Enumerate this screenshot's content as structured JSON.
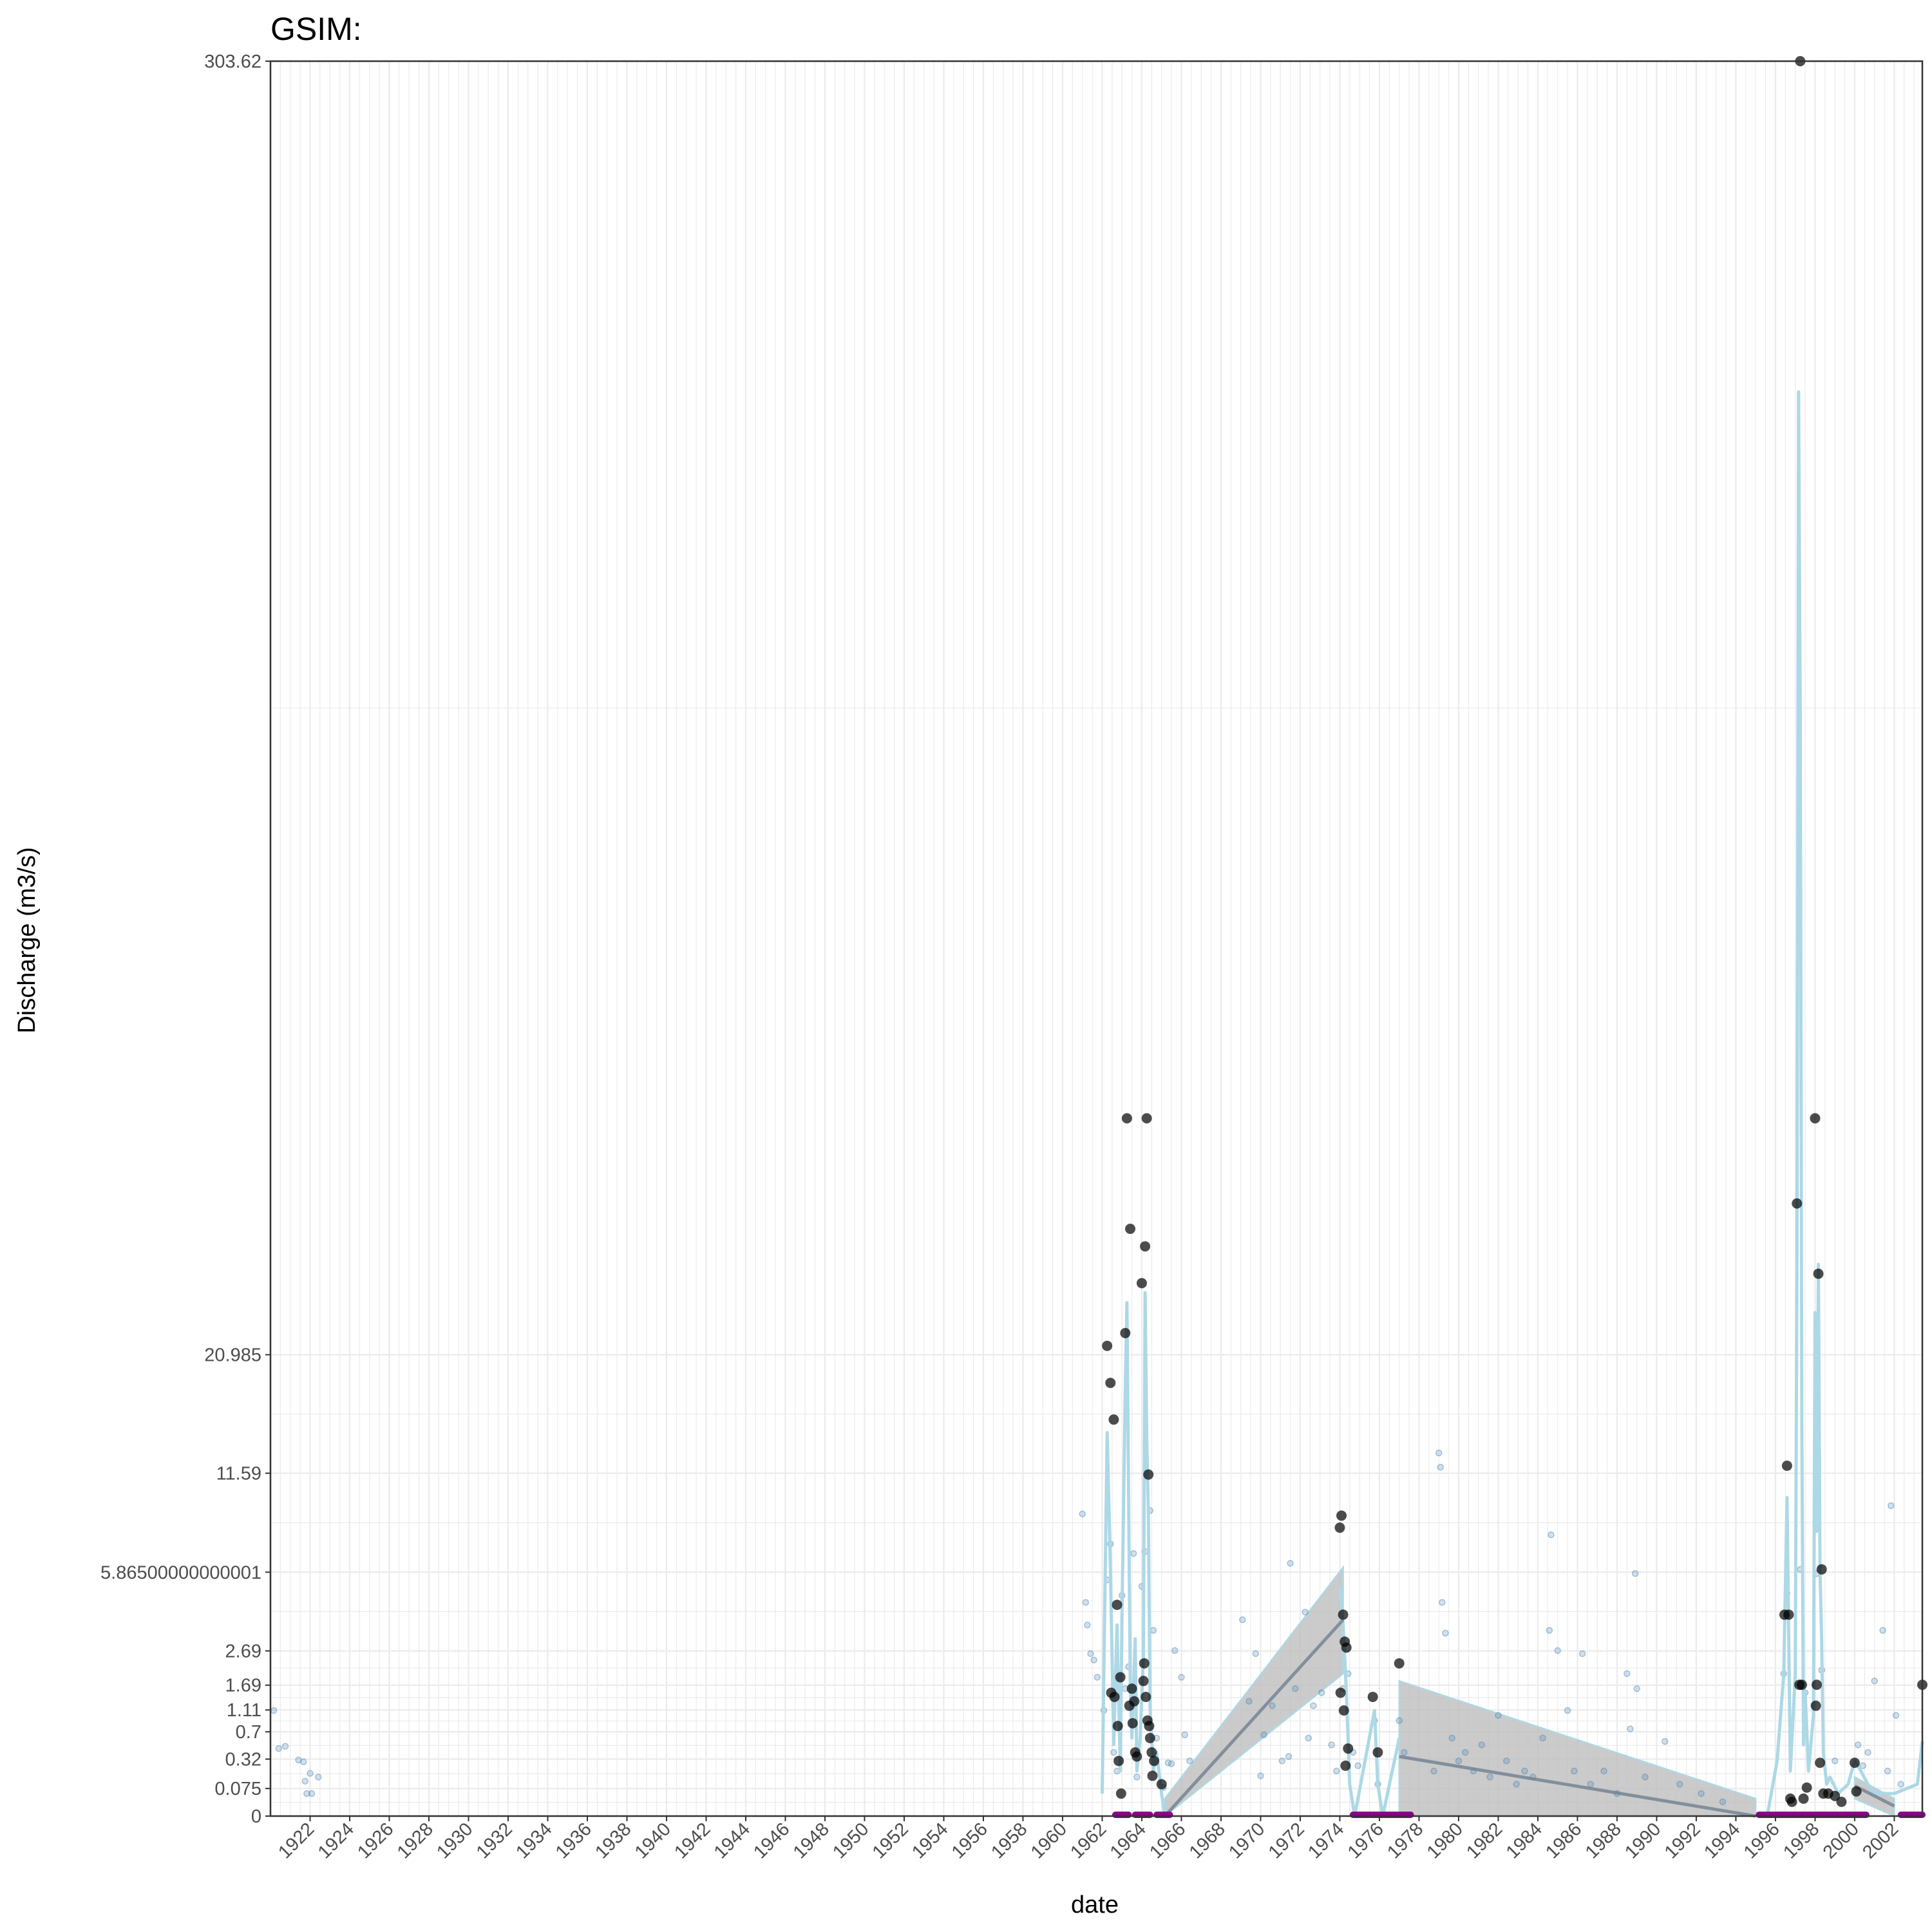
{
  "chart_data": {
    "type": "line",
    "title": "GSIM:",
    "xlabel": "date",
    "ylabel": "Discharge (m3/s)",
    "xlim": [
      "1920-01-01",
      "2003-06-01"
    ],
    "ylim": [
      0,
      303.62
    ],
    "y_scale": "sqrt",
    "x_ticks": [
      "1922",
      "1924",
      "1926",
      "1928",
      "1930",
      "1932",
      "1934",
      "1936",
      "1938",
      "1940",
      "1942",
      "1944",
      "1946",
      "1948",
      "1950",
      "1952",
      "1954",
      "1956",
      "1958",
      "1960",
      "1962",
      "1964",
      "1966",
      "1968",
      "1970",
      "1972",
      "1974",
      "1976",
      "1978",
      "1980",
      "1982",
      "1984",
      "1986",
      "1988",
      "1990",
      "1992",
      "1994",
      "1996",
      "1998",
      "2000",
      "2002"
    ],
    "y_ticks": [
      0,
      0.075,
      0.32,
      0.7,
      1.11,
      1.69,
      2.69,
      5.86500000000001,
      11.59,
      20.985,
      303.62
    ],
    "y_tick_labels": [
      "0",
      "0.075",
      "0.32",
      "0.7",
      "1.11",
      "1.69",
      "2.69",
      "5.86500000000001",
      "11.59",
      "20.985",
      "303.62"
    ],
    "grid": true,
    "colors": {
      "annual_points": "#000000",
      "daily_points": "#4682b4",
      "monthly_line": "#add8e6",
      "trend_ribbon": "#bebebe",
      "trend_line": "#708090",
      "missing_periods": "#8b008b"
    },
    "series": [
      {
        "kind": "daily",
        "points": [
          [
            "1920-03-01",
            1.1
          ],
          [
            "1920-06-01",
            0.45
          ],
          [
            "1920-10-01",
            0.48
          ],
          [
            "1921-06-01",
            0.31
          ],
          [
            "1921-09-01",
            0.29
          ],
          [
            "1921-10-01",
            0.12
          ],
          [
            "1922-01-01",
            0.18
          ],
          [
            "1921-11-01",
            0.05
          ],
          [
            "1922-02-01",
            0.05
          ],
          [
            "1922-06-01",
            0.15
          ],
          [
            "1961-01-01",
            9.0
          ],
          [
            "1961-03-01",
            4.5
          ],
          [
            "1961-04-01",
            3.6
          ],
          [
            "1961-06-01",
            2.6
          ],
          [
            "1961-08-01",
            2.4
          ],
          [
            "1961-10-01",
            1.9
          ],
          [
            "1962-02-01",
            1.1
          ],
          [
            "1962-04-01",
            5.5
          ],
          [
            "1962-06-01",
            7.3
          ],
          [
            "1962-08-01",
            0.4
          ],
          [
            "1962-10-01",
            0.2
          ],
          [
            "1963-01-01",
            4.8
          ],
          [
            "1963-03-01",
            1.6
          ],
          [
            "1963-05-01",
            2.2
          ],
          [
            "1963-08-01",
            6.8
          ],
          [
            "1963-10-01",
            0.15
          ],
          [
            "1964-01-01",
            5.2
          ],
          [
            "1964-03-01",
            6.9
          ],
          [
            "1964-06-01",
            9.2
          ],
          [
            "1964-08-01",
            3.4
          ],
          [
            "1964-10-01",
            0.6
          ],
          [
            "1965-02-01",
            0.08
          ],
          [
            "1965-05-01",
            0.28
          ],
          [
            "1965-07-01",
            0.27
          ],
          [
            "1965-09-01",
            2.7
          ],
          [
            "1966-01-01",
            1.9
          ],
          [
            "1966-03-01",
            0.65
          ],
          [
            "1966-06-01",
            0.3
          ],
          [
            "1969-02-01",
            3.8
          ],
          [
            "1969-06-01",
            1.3
          ],
          [
            "1969-10-01",
            2.6
          ],
          [
            "1970-03-01",
            0.65
          ],
          [
            "1970-08-01",
            1.2
          ],
          [
            "1970-01-01",
            0.16
          ],
          [
            "1971-02-01",
            0.3
          ],
          [
            "1971-06-01",
            0.35
          ],
          [
            "1971-10-01",
            1.6
          ],
          [
            "1971-07-01",
            6.3
          ],
          [
            "1972-04-01",
            4.1
          ],
          [
            "1972-09-01",
            1.2
          ],
          [
            "1972-06-01",
            0.6
          ],
          [
            "1973-02-01",
            1.5
          ],
          [
            "1973-08-01",
            0.5
          ],
          [
            "1973-11-01",
            0.2
          ],
          [
            "1974-03-01",
            1.6
          ],
          [
            "1974-06-01",
            2.0
          ],
          [
            "1974-09-01",
            0.4
          ],
          [
            "1974-12-01",
            0.25
          ],
          [
            "1975-10-01",
            0.9
          ],
          [
            "1975-12-01",
            0.1
          ],
          [
            "1977-01-01",
            0.9
          ],
          [
            "1977-04-01",
            0.4
          ],
          [
            "1978-10-01",
            0.2
          ],
          [
            "1979-01-01",
            13.0
          ],
          [
            "1979-02-01",
            12.0
          ],
          [
            "1979-03-01",
            4.5
          ],
          [
            "1979-05-01",
            3.3
          ],
          [
            "1979-09-01",
            0.6
          ],
          [
            "1980-01-01",
            0.3
          ],
          [
            "1980-05-01",
            0.4
          ],
          [
            "1980-10-01",
            0.2
          ],
          [
            "1981-03-01",
            0.5
          ],
          [
            "1981-08-01",
            0.15
          ],
          [
            "1982-01-01",
            1.0
          ],
          [
            "1982-06-01",
            0.3
          ],
          [
            "1982-12-01",
            0.1
          ],
          [
            "1983-05-01",
            0.2
          ],
          [
            "1983-10-01",
            0.15
          ],
          [
            "1984-04-01",
            0.6
          ],
          [
            "1984-08-01",
            3.4
          ],
          [
            "1984-09-01",
            7.8
          ],
          [
            "1985-01-01",
            2.7
          ],
          [
            "1985-07-01",
            1.1
          ],
          [
            "1985-11-01",
            0.2
          ],
          [
            "1986-04-01",
            2.6
          ],
          [
            "1986-09-01",
            0.1
          ],
          [
            "1987-05-01",
            0.2
          ],
          [
            "1988-01-01",
            0.05
          ],
          [
            "1988-07-01",
            2.0
          ],
          [
            "1988-09-01",
            0.75
          ],
          [
            "1989-01-01",
            1.6
          ],
          [
            "1988-12-01",
            5.8
          ],
          [
            "1989-06-01",
            0.15
          ],
          [
            "1990-06-01",
            0.55
          ],
          [
            "1991-03-01",
            0.1
          ],
          [
            "1992-04-01",
            0.05
          ],
          [
            "1993-05-01",
            0.02
          ],
          [
            "1996-06-01",
            2.0
          ],
          [
            "1996-08-01",
            4.9
          ],
          [
            "1997-04-01",
            6.0
          ],
          [
            "1997-07-01",
            1.5
          ],
          [
            "1998-02-01",
            5.8
          ],
          [
            "1998-05-01",
            2.1
          ],
          [
            "1999-01-01",
            0.3
          ],
          [
            "2000-03-01",
            0.5
          ],
          [
            "2000-06-01",
            0.25
          ],
          [
            "2000-09-01",
            0.4
          ],
          [
            "2001-01-01",
            1.8
          ],
          [
            "2001-06-01",
            3.4
          ],
          [
            "2001-09-01",
            0.2
          ],
          [
            "2001-11-01",
            9.5
          ],
          [
            "2002-02-01",
            1.0
          ],
          [
            "2002-05-01",
            0.1
          ]
        ]
      },
      {
        "kind": "annual",
        "points": [
          [
            "1962-04-01",
            21.8
          ],
          [
            "1962-06-01",
            18.5
          ],
          [
            "1962-08-01",
            15.5
          ],
          [
            "1962-10-01",
            4.4
          ],
          [
            "1962-12-01",
            1.9
          ],
          [
            "1962-06-15",
            1.5
          ],
          [
            "1962-08-15",
            1.4
          ],
          [
            "1962-10-15",
            0.8
          ],
          [
            "1962-11-01",
            0.3
          ],
          [
            "1962-12-15",
            0.05
          ],
          [
            "1963-03-01",
            23.0
          ],
          [
            "1963-04-01",
            48.0
          ],
          [
            "1963-06-01",
            34.0
          ],
          [
            "1963-07-01",
            1.6
          ],
          [
            "1963-05-15",
            1.2
          ],
          [
            "1963-07-15",
            0.85
          ],
          [
            "1963-09-01",
            0.4
          ],
          [
            "1963-10-01",
            0.35
          ],
          [
            "1963-08-15",
            1.3
          ],
          [
            "1964-01-01",
            28.0
          ],
          [
            "1964-03-01",
            32.0
          ],
          [
            "1964-04-01",
            48.0
          ],
          [
            "1964-05-01",
            11.5
          ],
          [
            "1964-02-01",
            1.8
          ],
          [
            "1964-02-15",
            2.3
          ],
          [
            "1964-03-15",
            1.4
          ],
          [
            "1964-04-15",
            0.9
          ],
          [
            "1964-05-15",
            0.8
          ],
          [
            "1964-06-01",
            0.6
          ],
          [
            "1964-07-01",
            0.4
          ],
          [
            "1964-07-15",
            0.16
          ],
          [
            "1964-08-15",
            0.3
          ],
          [
            "1965-01-01",
            0.1
          ],
          [
            "1974-01-01",
            8.2
          ],
          [
            "1974-02-01",
            8.9
          ],
          [
            "1974-03-01",
            4.0
          ],
          [
            "1974-04-01",
            3.0
          ],
          [
            "1974-05-01",
            2.8
          ],
          [
            "1974-01-15",
            1.5
          ],
          [
            "1974-03-15",
            1.1
          ],
          [
            "1974-04-15",
            0.25
          ],
          [
            "1974-06-01",
            0.45
          ],
          [
            "1975-09-01",
            1.4
          ],
          [
            "1975-12-01",
            0.4
          ],
          [
            "1977-01-01",
            2.3
          ],
          [
            "1996-08-01",
            12.1
          ],
          [
            "1996-06-15",
            4.0
          ],
          [
            "1996-09-01",
            4.0
          ],
          [
            "1996-10-01",
            0.03
          ],
          [
            "1996-11-01",
            0.02
          ],
          [
            "1997-02-01",
            37.0
          ],
          [
            "1997-04-01",
            303.62
          ],
          [
            "1997-03-15",
            1.7
          ],
          [
            "1997-05-01",
            1.7
          ],
          [
            "1997-06-01",
            0.03
          ],
          [
            "1997-08-01",
            0.08
          ],
          [
            "1998-01-01",
            48.0
          ],
          [
            "1998-03-01",
            29.0
          ],
          [
            "1998-02-01",
            1.7
          ],
          [
            "1998-01-15",
            1.2
          ],
          [
            "1998-05-01",
            6.0
          ],
          [
            "1998-04-01",
            0.28
          ],
          [
            "1998-06-01",
            0.05
          ],
          [
            "1998-09-01",
            0.05
          ],
          [
            "1999-01-01",
            0.04
          ],
          [
            "1999-05-01",
            0.02
          ],
          [
            "2000-01-01",
            0.28
          ],
          [
            "2000-02-01",
            0.06
          ],
          [
            "2003-06-01",
            1.7
          ]
        ]
      },
      {
        "kind": "monthly_line",
        "points": [
          [
            "1962-01-01",
            0.05
          ],
          [
            "1962-02-01",
            2.0
          ],
          [
            "1962-04-01",
            14.5
          ],
          [
            "1962-06-01",
            6.0
          ],
          [
            "1962-08-01",
            0.5
          ],
          [
            "1962-10-01",
            3.6
          ],
          [
            "1962-12-01",
            0.2
          ],
          [
            "1963-01-01",
            4.0
          ],
          [
            "1963-03-01",
            18.0
          ],
          [
            "1963-04-01",
            26.0
          ],
          [
            "1963-06-01",
            1.8
          ],
          [
            "1963-07-01",
            0.6
          ],
          [
            "1963-09-01",
            3.1
          ],
          [
            "1963-10-01",
            0.2
          ],
          [
            "1963-12-01",
            0.6
          ],
          [
            "1964-02-01",
            2.5
          ],
          [
            "1964-03-01",
            27.0
          ],
          [
            "1964-04-01",
            14.0
          ],
          [
            "1964-05-01",
            9.0
          ],
          [
            "1964-06-01",
            1.2
          ],
          [
            "1964-08-01",
            0.2
          ],
          [
            "1964-10-01",
            0.4
          ],
          [
            "1965-01-01",
            0.05
          ],
          [
            "1965-03-01",
            0.0
          ],
          [
            "1974-01-01",
            5.2
          ],
          [
            "1974-03-01",
            3.6
          ],
          [
            "1974-05-01",
            1.5
          ],
          [
            "1974-07-01",
            0.1
          ],
          [
            "1974-10-01",
            0.0
          ],
          [
            "1975-10-01",
            1.1
          ],
          [
            "1975-12-01",
            0.1
          ],
          [
            "1976-03-01",
            0.0
          ],
          [
            "1977-01-01",
            0.6
          ],
          [
            "1995-08-01",
            0.0
          ],
          [
            "1996-02-01",
            0.3
          ],
          [
            "1996-06-01",
            2.0
          ],
          [
            "1996-08-01",
            10.0
          ],
          [
            "1996-10-01",
            0.2
          ],
          [
            "1997-01-01",
            2.0
          ],
          [
            "1997-02-01",
            30.0
          ],
          [
            "1997-03-01",
            200.0
          ],
          [
            "1997-04-01",
            120.0
          ],
          [
            "1997-05-01",
            15.0
          ],
          [
            "1997-06-01",
            0.5
          ],
          [
            "1997-07-01",
            1.5
          ],
          [
            "1997-09-01",
            0.2
          ],
          [
            "1997-12-01",
            1.0
          ],
          [
            "1998-01-01",
            25.0
          ],
          [
            "1998-02-01",
            8.0
          ],
          [
            "1998-03-01",
            30.0
          ],
          [
            "1998-04-01",
            6.0
          ],
          [
            "1998-05-01",
            3.0
          ],
          [
            "1998-06-01",
            0.4
          ],
          [
            "1998-08-01",
            0.1
          ],
          [
            "1998-10-01",
            0.15
          ],
          [
            "1999-03-01",
            0.05
          ],
          [
            "1999-09-01",
            0.1
          ],
          [
            "2000-01-01",
            0.3
          ],
          [
            "2000-03-01",
            0.25
          ],
          [
            "2000-09-01",
            0.1
          ],
          [
            "2001-01-01",
            0.05
          ],
          [
            "2002-01-01",
            0.05
          ],
          [
            "2003-03-01",
            0.1
          ],
          [
            "2003-06-01",
            0.55
          ]
        ]
      },
      {
        "kind": "trend",
        "segments": [
          {
            "start": "1965-03-01",
            "end": "1974-03-01",
            "y_start": 0.0,
            "y_end": 3.8,
            "low_start": 0.0,
            "high_start": 0.03,
            "low_end": 2.0,
            "high_end": 6.1
          },
          {
            "start": "1977-01-01",
            "end": "1995-01-01",
            "y_start": 0.35,
            "y_end": 0.0,
            "low_start": 0.0,
            "high_start": 1.8,
            "low_end": 0.0,
            "high_end": 0.03
          },
          {
            "start": "2000-01-01",
            "end": "2002-01-01",
            "y_start": 0.09,
            "y_end": 0.01,
            "low_start": 0.03,
            "high_start": 0.15,
            "low_end": 0.0,
            "high_end": 0.03
          }
        ]
      },
      {
        "kind": "missing",
        "segments": [
          [
            "1962-09-01",
            "1963-05-01"
          ],
          [
            "1963-09-01",
            "1964-06-01"
          ],
          [
            "1964-10-01",
            "1965-06-01"
          ],
          [
            "1974-09-01",
            "1977-08-01"
          ],
          [
            "1995-03-01",
            "2000-08-01"
          ],
          [
            "2002-05-01",
            "2003-06-01"
          ]
        ]
      }
    ]
  }
}
